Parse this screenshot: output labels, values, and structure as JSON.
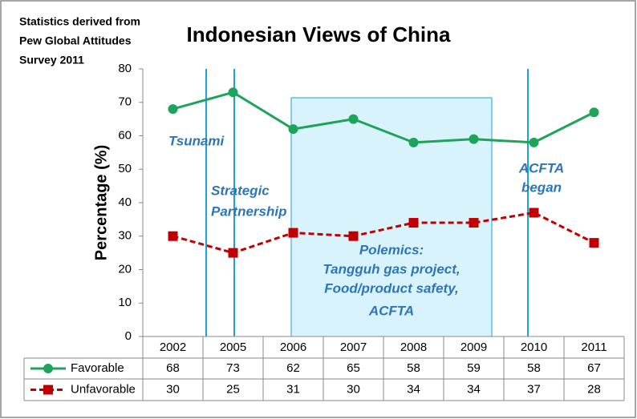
{
  "chart_data": {
    "type": "line",
    "title": "Indonesian Views of China",
    "source_note": [
      "Statistics derived from",
      "Pew Global Attitudes",
      "Survey 2011"
    ],
    "y_label": "Percentage (%)",
    "categories": [
      "2002",
      "2005",
      "2006",
      "2007",
      "2008",
      "2009",
      "2010",
      "2011"
    ],
    "series": [
      {
        "name": "Favorable",
        "color": "#1ea35a",
        "dash": false,
        "marker": "circle",
        "values": [
          68,
          73,
          62,
          65,
          58,
          59,
          58,
          67
        ]
      },
      {
        "name": "Unfavorable",
        "color": "#c00000",
        "dash": true,
        "marker": "square",
        "values": [
          30,
          25,
          31,
          30,
          34,
          34,
          37,
          28
        ]
      }
    ],
    "ylim": [
      0,
      80
    ],
    "yticks": [
      0,
      10,
      20,
      30,
      40,
      50,
      60,
      70,
      80
    ],
    "grid": false,
    "annotations": [
      {
        "lines": [
          "Tsunami"
        ]
      },
      {
        "lines": [
          "Strategic",
          "Partnership"
        ]
      },
      {
        "lines": [
          "ACFTA",
          "began"
        ]
      },
      {
        "lines": [
          "Polemics:",
          "Tangguh gas project,",
          "Food/product safety,",
          "ACFTA"
        ]
      }
    ]
  }
}
